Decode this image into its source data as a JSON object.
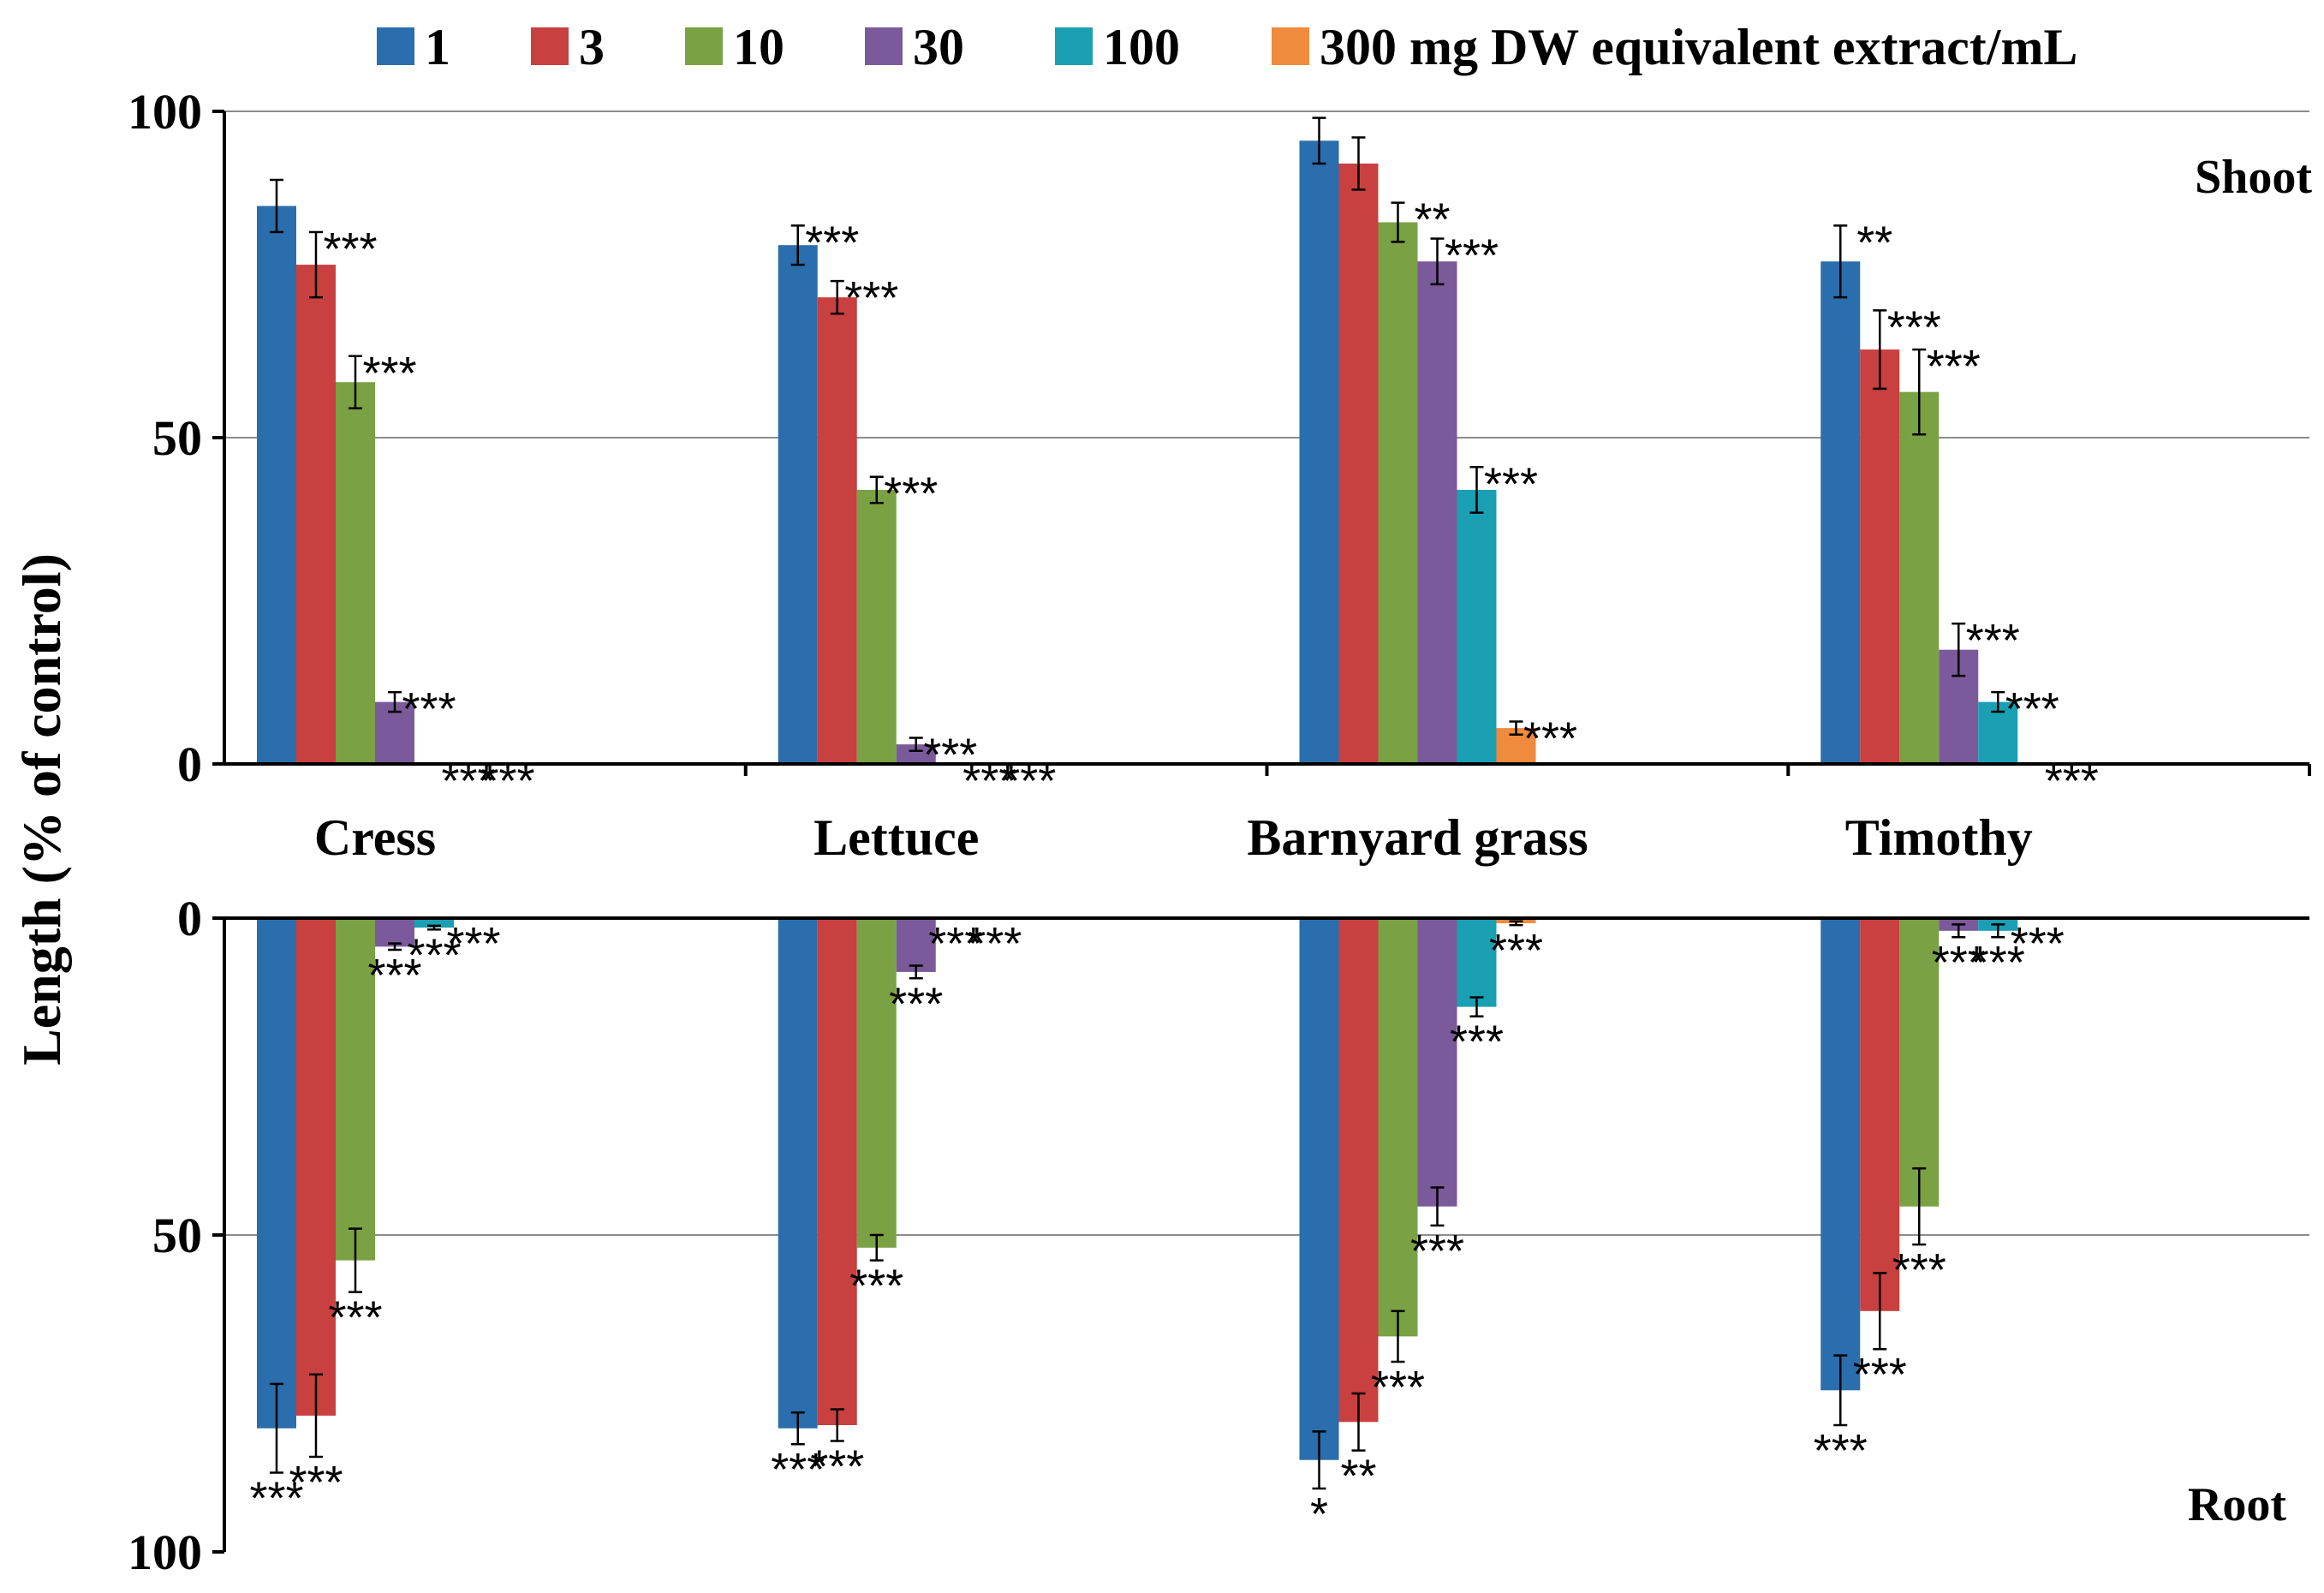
{
  "chart_data": {
    "type": "bar",
    "ylabel": "Length (% of control)",
    "legend_position": "top",
    "legend_unit": "mg DW equivalent extract/mL",
    "grid": true,
    "categories": [
      "Cress",
      "Lettuce",
      "Barnyard grass",
      "Timothy"
    ],
    "colors": [
      "#2a6ead",
      "#c8403f",
      "#7aa143",
      "#7a5a9a",
      "#1a9fb3",
      "#f08a3c"
    ],
    "panels": [
      {
        "name": "Shoot",
        "direction": "up",
        "ylim": [
          0,
          100
        ],
        "yticks": [
          "0",
          "50",
          "100"
        ],
        "series": [
          {
            "name": "1",
            "values": [
              85.5,
              79.5,
              95.5,
              77.0
            ],
            "errors": [
              4.0,
              3.0,
              3.5,
              5.5
            ],
            "sig": [
              "",
              "***",
              "",
              "**"
            ]
          },
          {
            "name": "3",
            "values": [
              76.5,
              71.5,
              92.0,
              63.5
            ],
            "errors": [
              5.0,
              2.5,
              4.0,
              6.0
            ],
            "sig": [
              "***",
              "***",
              "",
              "***"
            ]
          },
          {
            "name": "10",
            "values": [
              58.5,
              42.0,
              83.0,
              57.0
            ],
            "errors": [
              4.0,
              2.0,
              3.0,
              6.5
            ],
            "sig": [
              "***",
              "***",
              "**",
              "***"
            ]
          },
          {
            "name": "30",
            "values": [
              9.5,
              3.0,
              77.0,
              17.5
            ],
            "errors": [
              1.5,
              1.0,
              3.5,
              4.0
            ],
            "sig": [
              "***",
              "***",
              "***",
              "***"
            ]
          },
          {
            "name": "100",
            "values": [
              0,
              0,
              42.0,
              9.5
            ],
            "errors": [
              0,
              0,
              3.5,
              1.5
            ],
            "sig": [
              "***",
              "***",
              "***",
              "***"
            ]
          },
          {
            "name": "300",
            "values": [
              0,
              0,
              5.5,
              0
            ],
            "errors": [
              0,
              0,
              1.0,
              0
            ],
            "sig": [
              "***",
              "***",
              "***",
              "***"
            ]
          }
        ]
      },
      {
        "name": "Root",
        "direction": "down",
        "ylim": [
          0,
          100
        ],
        "yticks": [
          "0",
          "50",
          "100"
        ],
        "series": [
          {
            "name": "1",
            "values": [
              80.5,
              80.5,
              85.5,
              74.5
            ],
            "errors": [
              7.0,
              2.5,
              4.5,
              5.5
            ],
            "sig": [
              "***",
              "***",
              "*",
              "***"
            ]
          },
          {
            "name": "3",
            "values": [
              78.5,
              80.0,
              79.5,
              62.0
            ],
            "errors": [
              6.5,
              2.5,
              4.5,
              6.0
            ],
            "sig": [
              "***",
              "***",
              "**",
              "***"
            ]
          },
          {
            "name": "10",
            "values": [
              54.0,
              52.0,
              66.0,
              45.5
            ],
            "errors": [
              5.0,
              2.0,
              4.0,
              6.0
            ],
            "sig": [
              "***",
              "***",
              "***",
              "***"
            ]
          },
          {
            "name": "30",
            "values": [
              4.5,
              8.5,
              45.5,
              2.0
            ],
            "errors": [
              0.5,
              1.0,
              3.0,
              1.0
            ],
            "sig": [
              "***",
              "***",
              "***",
              "***"
            ]
          },
          {
            "name": "100",
            "values": [
              1.5,
              0,
              14.0,
              2.0
            ],
            "errors": [
              0.3,
              0,
              1.5,
              1.0
            ],
            "sig": [
              "***",
              "***",
              "***",
              "***"
            ]
          },
          {
            "name": "300",
            "values": [
              0,
              0,
              0.8,
              0
            ],
            "errors": [
              0,
              0,
              0.3,
              0
            ],
            "sig": [
              "***",
              "***",
              "***",
              "***"
            ]
          }
        ]
      }
    ]
  }
}
